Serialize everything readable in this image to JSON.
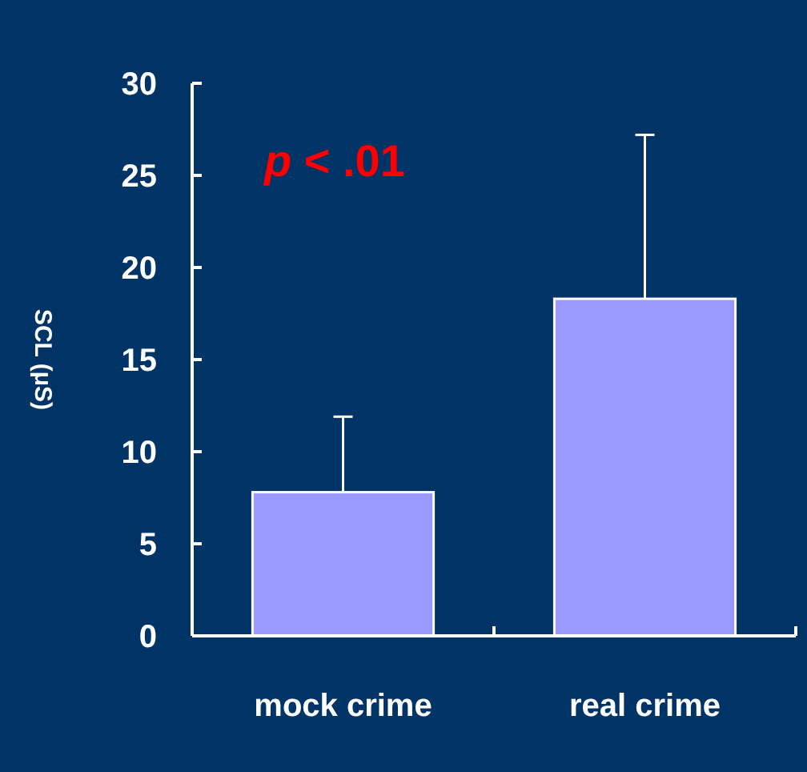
{
  "chart_data": {
    "type": "bar",
    "ylabel": "SCL (μS)",
    "categories": [
      "mock crime",
      "real crime"
    ],
    "values": [
      7.8,
      18.3
    ],
    "errors": [
      4.1,
      8.9
    ],
    "color": "#9999ff",
    "ylim": [
      0,
      30
    ],
    "yticks": [
      0,
      5,
      10,
      15,
      20,
      25,
      30
    ],
    "grid": false,
    "annotations": [
      "p < .01"
    ]
  }
}
